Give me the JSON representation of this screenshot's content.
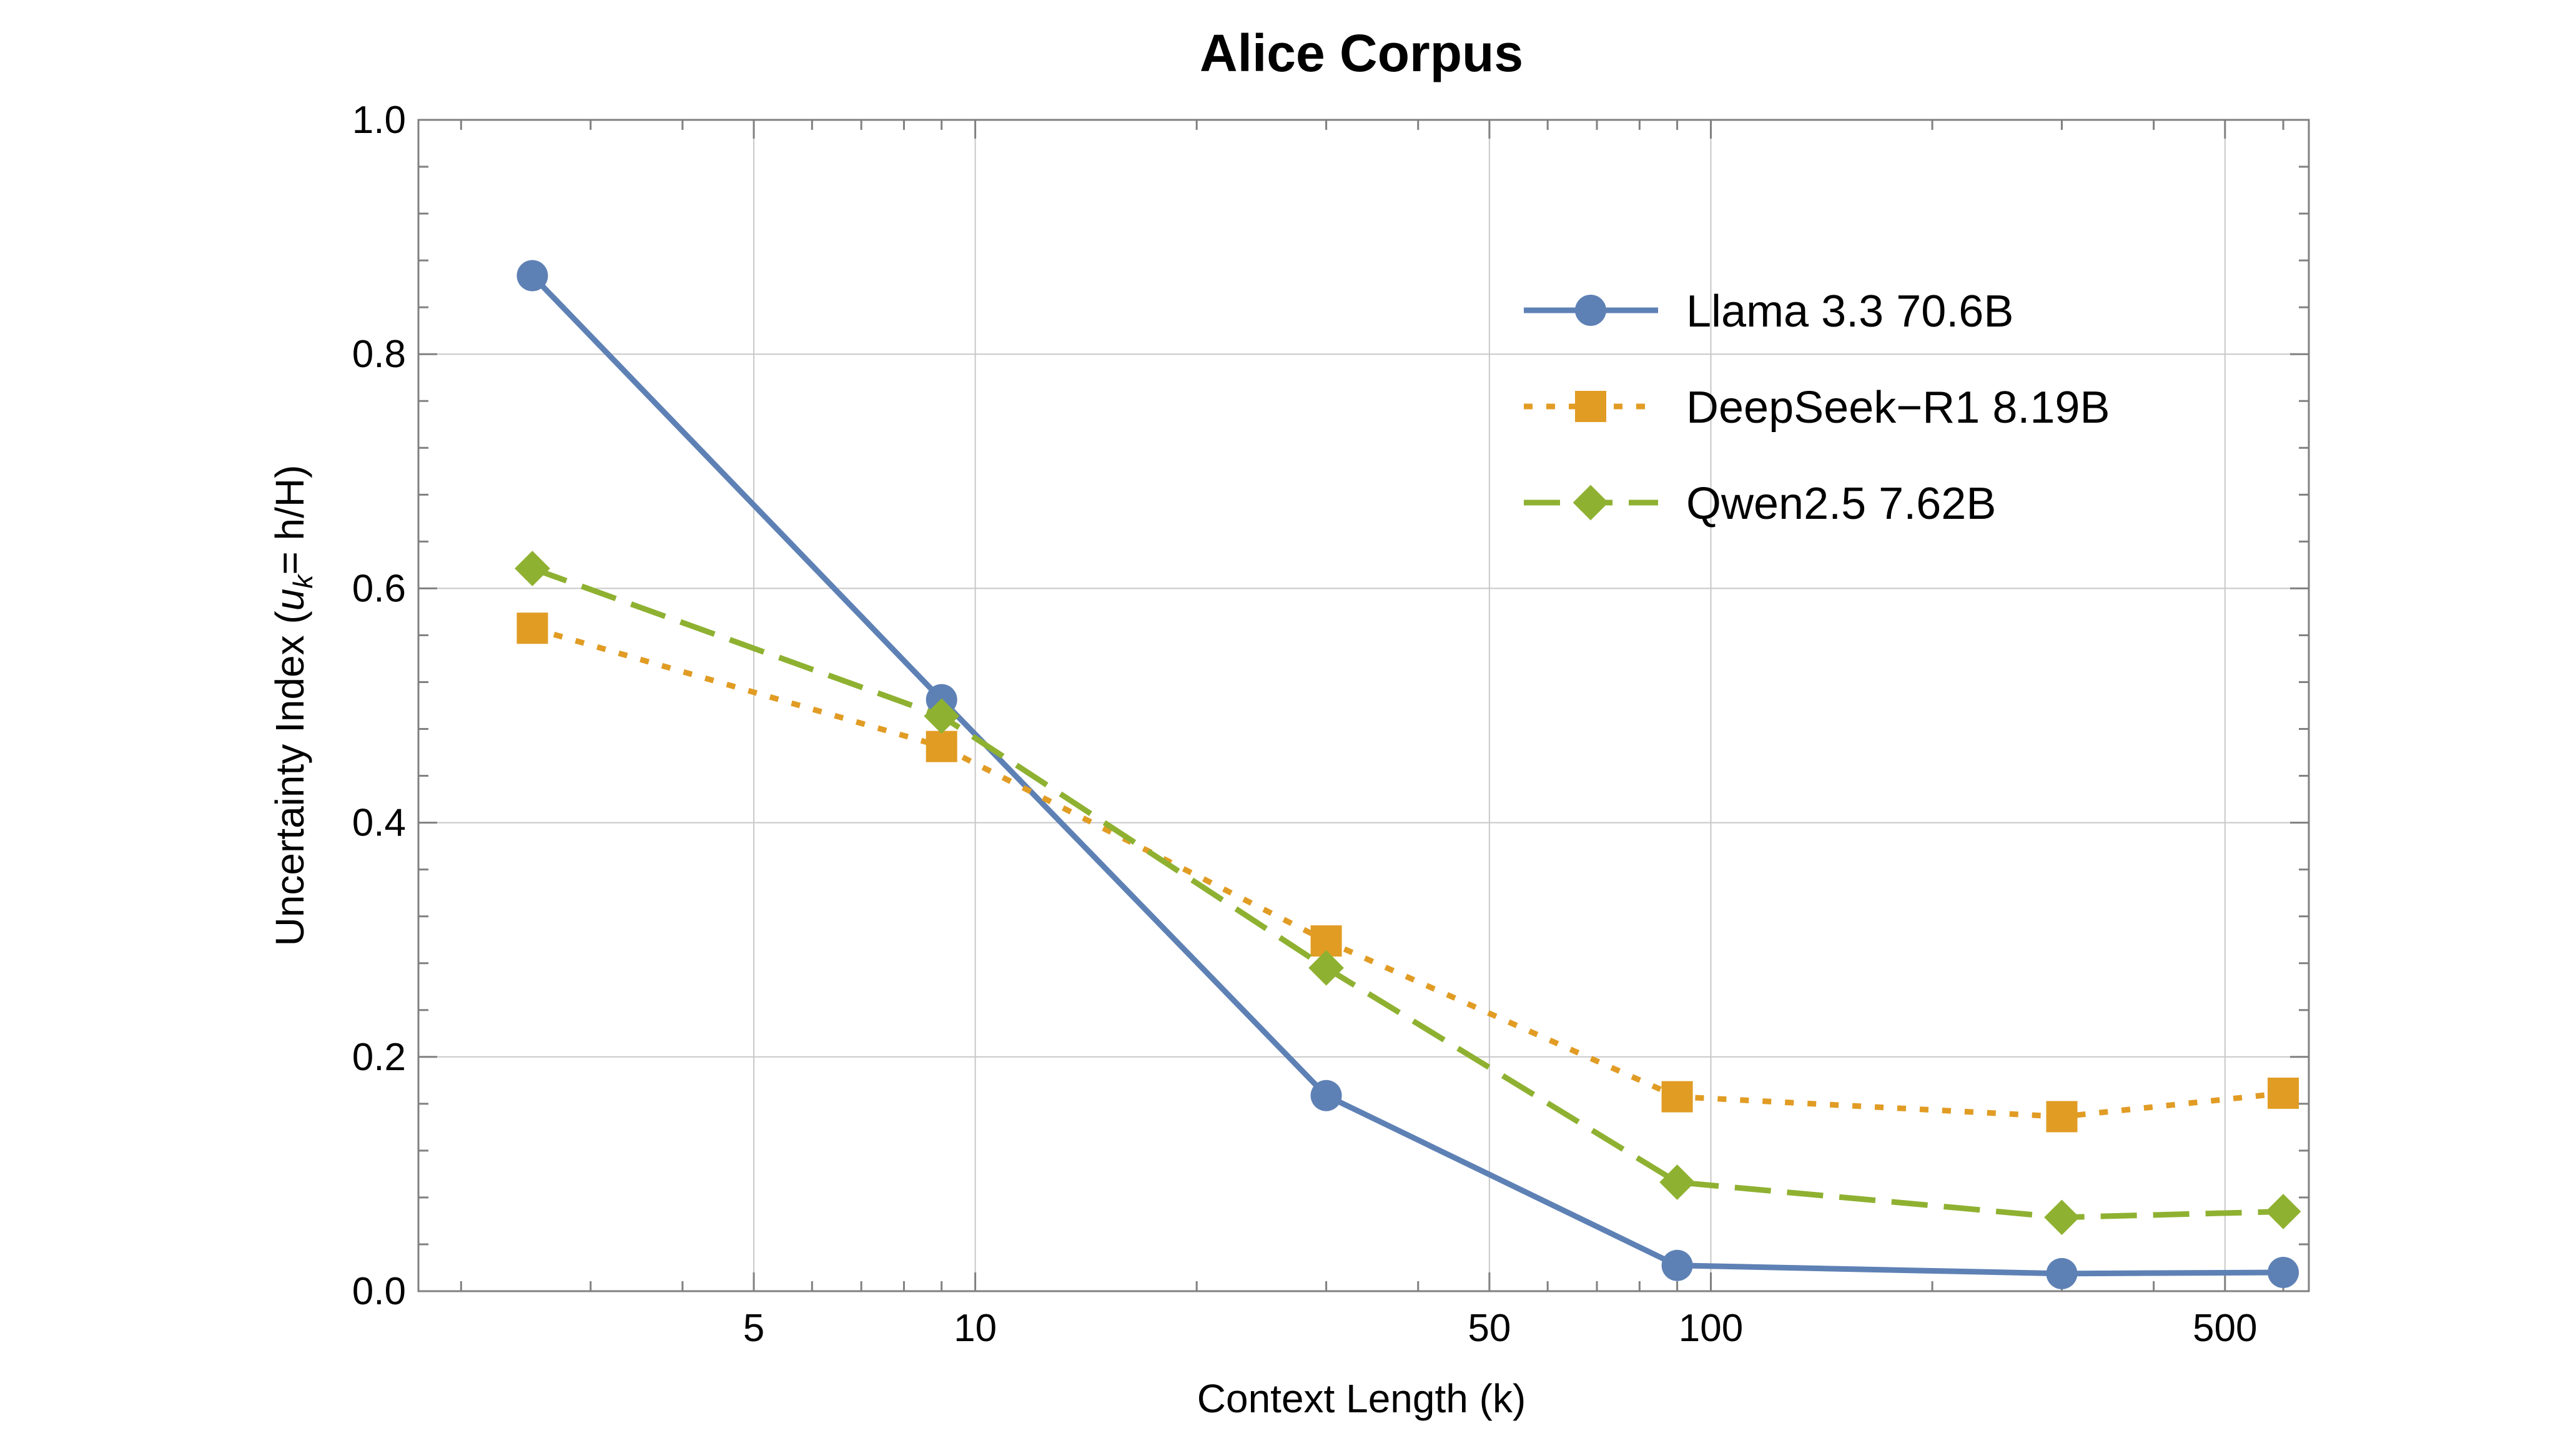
{
  "chart_data": {
    "type": "line",
    "title": "Alice Corpus",
    "xlabel": "Context Length (k)",
    "ylabel_prefix": "Uncertainty Index (",
    "ylabel_var": "u",
    "ylabel_sub": "k",
    "ylabel_suffix": "= h/H)",
    "x_scale": "log",
    "xlim": [
      1.75,
      650
    ],
    "ylim": [
      0.0,
      1.0
    ],
    "x_ticks": [
      5,
      10,
      50,
      100,
      500
    ],
    "x_tick_labels": [
      "5",
      "10",
      "50",
      "100",
      "500"
    ],
    "y_ticks": [
      0.0,
      0.2,
      0.4,
      0.6,
      0.8,
      1.0
    ],
    "y_tick_labels": [
      "0.0",
      "0.2",
      "0.4",
      "0.6",
      "0.8",
      "1.0"
    ],
    "grid": true,
    "legend_position": "top-right",
    "x": [
      2.5,
      9,
      30,
      90,
      300,
      600
    ],
    "series": [
      {
        "name": "Llama 3.3 70.6B",
        "values": [
          0.867,
          0.505,
          0.167,
          0.022,
          0.015,
          0.016
        ],
        "color": "#5E81B5",
        "marker": "circle",
        "line_style": "solid"
      },
      {
        "name": "DeepSeek−R1 8.19B",
        "values": [
          0.566,
          0.465,
          0.299,
          0.166,
          0.149,
          0.169
        ],
        "color": "#E19C24",
        "marker": "square",
        "line_style": "dotted"
      },
      {
        "name": "Qwen2.5 7.62B",
        "values": [
          0.617,
          0.491,
          0.276,
          0.093,
          0.063,
          0.068
        ],
        "color": "#8FB131",
        "marker": "diamond",
        "line_style": "dashed"
      }
    ]
  }
}
